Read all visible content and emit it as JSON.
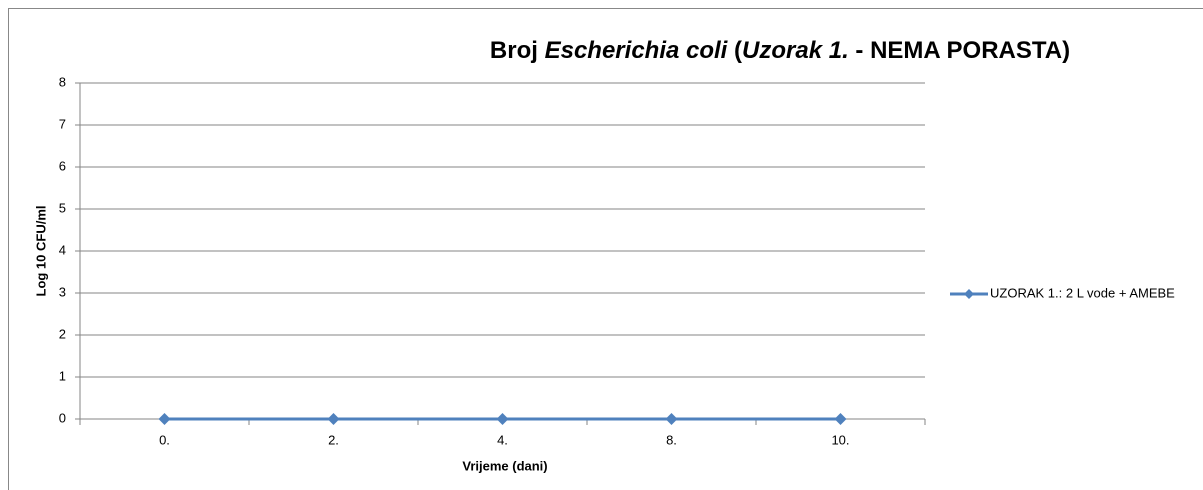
{
  "chart_data": {
    "type": "line",
    "title": [
      "Broj ",
      "Escherichia coli",
      " (",
      "Uzorak 1.",
      " - NEMA PORASTA)"
    ],
    "title_italic": [
      false,
      true,
      false,
      true,
      false
    ],
    "x_label": "Vrijeme (dani)",
    "y_label": "Log 10 CFU/ml",
    "categories": [
      "0.",
      "2.",
      "4.",
      "8.",
      "10."
    ],
    "series": [
      {
        "name": "UZORAK 1.: 2 L vode + AMEBE",
        "color": "#4f81bd",
        "values": [
          0,
          0,
          0,
          0,
          0
        ]
      }
    ],
    "ylim": [
      0,
      8
    ],
    "yticks": [
      0,
      1,
      2,
      3,
      4,
      5,
      6,
      7,
      8
    ],
    "grid": true,
    "legend": "right"
  }
}
